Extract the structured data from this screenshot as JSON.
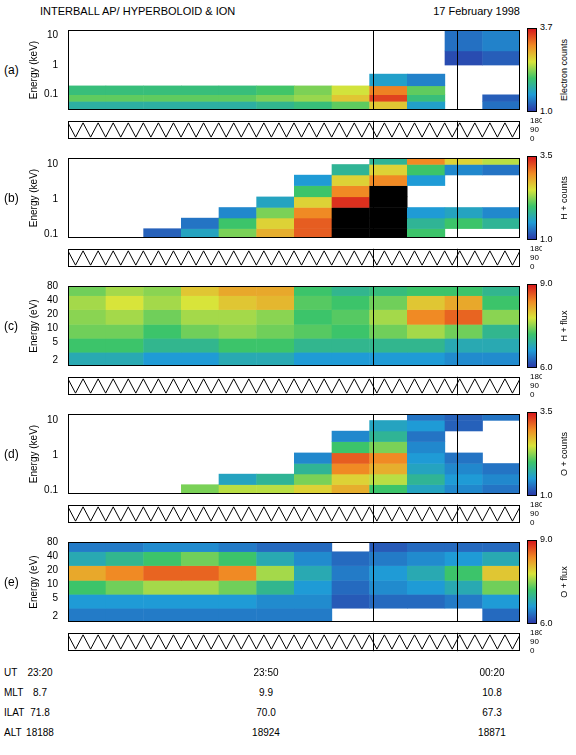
{
  "title": "INTERBALL AP/ HYPERBOLOID & ION",
  "date": "17 February 1998",
  "x_label": "UT",
  "xlim": [
    0,
    60
  ],
  "xticks": [
    {
      "value": 0,
      "label": "23:20"
    },
    {
      "value": 30,
      "label": "23:50"
    },
    {
      "value": 60,
      "label": "00:20"
    }
  ],
  "x_rows": [
    {
      "name": "MLT",
      "labels": [
        "8.7",
        "9.9",
        "10.8"
      ]
    },
    {
      "name": "ILAT",
      "labels": [
        "71.8",
        "70.0",
        "67.3"
      ]
    },
    {
      "name": "ALT",
      "labels": [
        "18188",
        "18924",
        "18871"
      ]
    }
  ],
  "vertical_lines": [
    40.5,
    51.7
  ],
  "x_edges": [
    0,
    5,
    10,
    15,
    20,
    25,
    30,
    35,
    40,
    45,
    50,
    55,
    60
  ],
  "pitch_angle": {
    "ylim": [
      0,
      180
    ],
    "yticks": [
      0,
      90,
      180
    ],
    "x": [
      0,
      1,
      2,
      3,
      4,
      5,
      6,
      7,
      8,
      9,
      10,
      11,
      12,
      13,
      14,
      15,
      16,
      17,
      18,
      19,
      20,
      21,
      22,
      23,
      24,
      25,
      26,
      27,
      28,
      29,
      30,
      31,
      32,
      33,
      34,
      35,
      36,
      37,
      38,
      39,
      40,
      41,
      42,
      43,
      44,
      45,
      46,
      47,
      48,
      49,
      50,
      51,
      52,
      53,
      54,
      55,
      56,
      57,
      58,
      59,
      60
    ],
    "values": [
      160,
      20,
      160,
      20,
      160,
      20,
      160,
      20,
      160,
      20,
      160,
      20,
      160,
      20,
      160,
      20,
      160,
      20,
      160,
      20,
      160,
      20,
      160,
      20,
      160,
      20,
      160,
      20,
      160,
      20,
      160,
      20,
      160,
      20,
      160,
      20,
      160,
      20,
      160,
      20,
      160,
      20,
      160,
      20,
      160,
      20,
      160,
      20,
      160,
      20,
      160,
      20,
      160,
      20,
      160,
      20,
      160,
      20,
      160,
      20,
      160
    ]
  },
  "chart_data": [
    {
      "type": "heatmap",
      "panel": "(a)",
      "y_label": "Energy (keV)",
      "log": "y",
      "ylim": [
        0.03,
        15
      ],
      "yticks": [
        0.1,
        1,
        10
      ],
      "y_edges": [
        0.03,
        0.06,
        0.1,
        0.2,
        0.5,
        1,
        3,
        15
      ],
      "cells": [
        [
          1.8,
          1.8,
          1.8,
          1.8,
          1.8,
          1.9,
          2.0,
          2.2,
          2.8,
          1.6,
          null,
          1.3
        ],
        [
          2.2,
          2.2,
          2.2,
          2.2,
          2.2,
          2.3,
          2.4,
          2.8,
          3.5,
          2.0,
          null,
          1.2
        ],
        [
          2.0,
          2.0,
          2.0,
          2.0,
          2.0,
          2.1,
          2.3,
          2.6,
          3.2,
          2.2,
          null,
          null
        ],
        [
          null,
          null,
          null,
          null,
          null,
          null,
          null,
          null,
          1.6,
          1.4,
          null,
          null
        ],
        [
          null,
          null,
          null,
          null,
          null,
          null,
          null,
          null,
          null,
          null,
          null,
          null
        ],
        [
          null,
          null,
          null,
          null,
          null,
          null,
          null,
          null,
          null,
          null,
          1.1,
          1.2
        ],
        [
          null,
          null,
          null,
          null,
          null,
          null,
          null,
          null,
          null,
          null,
          1.3,
          1.4
        ]
      ],
      "colorbar": {
        "label": "Electron counts",
        "range": [
          1.0,
          3.7
        ],
        "ticks": [
          {
            "value": 1.0,
            "label": "1.0"
          },
          {
            "value": 3.7,
            "label": "3.7"
          }
        ]
      }
    },
    {
      "type": "heatmap",
      "panel": "(b)",
      "y_label": "Energy (keV)",
      "log": "y",
      "ylim": [
        0.08,
        15
      ],
      "yticks": [
        0.1,
        1,
        10
      ],
      "y_edges": [
        0.08,
        0.15,
        0.3,
        0.6,
        1.2,
        2.5,
        5,
        10,
        15
      ],
      "cells": [
        [
          null,
          null,
          1.2,
          1.6,
          2.2,
          2.8,
          3.2,
          3.8,
          3.8,
          2.0,
          null,
          null
        ],
        [
          null,
          null,
          null,
          1.3,
          2.0,
          2.6,
          3.2,
          3.8,
          3.8,
          1.8,
          2.0,
          1.8
        ],
        [
          null,
          null,
          null,
          null,
          1.4,
          2.2,
          3.0,
          3.6,
          3.8,
          1.5,
          1.6,
          1.4
        ],
        [
          null,
          null,
          null,
          null,
          null,
          1.6,
          2.6,
          3.4,
          3.8,
          null,
          null,
          null
        ],
        [
          null,
          null,
          null,
          null,
          null,
          null,
          2.0,
          3.0,
          3.6,
          null,
          null,
          null
        ],
        [
          null,
          null,
          null,
          null,
          null,
          null,
          1.5,
          2.6,
          3.0,
          1.5,
          null,
          null
        ],
        [
          null,
          null,
          null,
          null,
          null,
          null,
          null,
          1.8,
          2.6,
          2.0,
          1.4,
          1.3
        ],
        [
          null,
          null,
          null,
          null,
          null,
          null,
          null,
          null,
          1.8,
          3.0,
          2.6,
          2.4
        ]
      ],
      "colorbar": {
        "label": "H + counts",
        "range": [
          1.0,
          3.5
        ],
        "ticks": [
          {
            "value": 1.0,
            "label": "1.0"
          },
          {
            "value": 3.5,
            "label": "3.5"
          }
        ]
      }
    },
    {
      "type": "heatmap",
      "panel": "(c)",
      "y_label": "Energy (eV)",
      "log": "y",
      "ylim": [
        1.5,
        80
      ],
      "yticks": [
        2,
        5,
        10,
        20,
        40,
        80
      ],
      "y_edges": [
        1.5,
        3,
        6,
        12,
        25,
        50,
        80
      ],
      "cells": [
        [
          6.8,
          6.8,
          6.6,
          6.6,
          6.8,
          6.8,
          6.6,
          6.6,
          6.6,
          6.6,
          6.5,
          6.5
        ],
        [
          7.2,
          7.2,
          7.0,
          7.0,
          7.2,
          7.2,
          7.0,
          7.0,
          7.0,
          7.0,
          6.8,
          6.8
        ],
        [
          7.4,
          7.4,
          7.2,
          7.4,
          7.5,
          7.4,
          7.3,
          7.2,
          7.4,
          7.6,
          7.4,
          7.0
        ],
        [
          7.5,
          7.6,
          7.4,
          7.6,
          7.6,
          7.5,
          7.2,
          7.3,
          7.6,
          8.4,
          8.6,
          7.5
        ],
        [
          7.6,
          7.8,
          7.6,
          7.8,
          8.0,
          8.1,
          7.3,
          7.2,
          7.4,
          8.0,
          8.2,
          7.2
        ],
        [
          7.4,
          7.6,
          7.5,
          8.0,
          8.2,
          8.2,
          7.2,
          7.0,
          7.1,
          7.2,
          7.2,
          7.0
        ]
      ],
      "colorbar": {
        "label": "H + flux",
        "range": [
          6.0,
          9.0
        ],
        "ticks": [
          {
            "value": 6.0,
            "label": "6.0"
          },
          {
            "value": 9.0,
            "label": "9.0"
          }
        ]
      }
    },
    {
      "type": "heatmap",
      "panel": "(d)",
      "y_label": "Energy (keV)",
      "log": "y",
      "ylim": [
        0.08,
        15
      ],
      "yticks": [
        0.1,
        1,
        10
      ],
      "y_edges": [
        0.08,
        0.15,
        0.3,
        0.6,
        1.2,
        2.5,
        5,
        10,
        15
      ],
      "cells": [
        [
          null,
          null,
          null,
          2.2,
          2.4,
          2.4,
          2.6,
          2.8,
          2.0,
          1.6,
          1.4,
          1.3
        ],
        [
          null,
          null,
          null,
          null,
          1.6,
          1.8,
          2.2,
          2.6,
          2.4,
          1.8,
          1.5,
          1.4
        ],
        [
          null,
          null,
          null,
          null,
          null,
          null,
          1.8,
          3.0,
          2.8,
          1.6,
          1.4,
          1.3
        ],
        [
          null,
          null,
          null,
          null,
          null,
          null,
          1.4,
          3.2,
          3.0,
          1.5,
          1.3,
          null
        ],
        [
          null,
          null,
          null,
          null,
          null,
          null,
          null,
          2.0,
          2.2,
          1.4,
          null,
          null
        ],
        [
          null,
          null,
          null,
          null,
          null,
          null,
          null,
          1.4,
          1.8,
          1.3,
          null,
          null
        ],
        [
          null,
          null,
          null,
          null,
          null,
          null,
          null,
          null,
          1.6,
          1.5,
          1.2,
          null
        ],
        [
          null,
          null,
          null,
          null,
          null,
          null,
          null,
          null,
          null,
          1.3,
          1.2,
          1.3
        ]
      ],
      "colorbar": {
        "label": "O + counts",
        "range": [
          1.0,
          3.5
        ],
        "ticks": [
          {
            "value": 1.0,
            "label": "1.0"
          },
          {
            "value": 3.5,
            "label": "3.5"
          }
        ]
      }
    },
    {
      "type": "heatmap",
      "panel": "(e)",
      "y_label": "Energy (eV)",
      "log": "y",
      "ylim": [
        1.5,
        80
      ],
      "yticks": [
        2,
        5,
        10,
        20,
        40,
        80
      ],
      "y_edges": [
        1.5,
        3,
        6,
        12,
        25,
        50,
        80
      ],
      "cells": [
        [
          6.4,
          6.4,
          6.4,
          6.4,
          6.4,
          6.4,
          6.4,
          null,
          null,
          null,
          null,
          6.3
        ],
        [
          6.6,
          6.6,
          6.6,
          6.6,
          6.6,
          6.5,
          6.5,
          6.2,
          6.3,
          6.3,
          6.4,
          6.6
        ],
        [
          7.2,
          7.4,
          7.6,
          7.6,
          7.4,
          7.0,
          6.6,
          6.3,
          6.5,
          6.6,
          6.8,
          7.4
        ],
        [
          8.2,
          8.4,
          8.6,
          8.6,
          8.4,
          7.6,
          6.8,
          6.4,
          6.6,
          6.8,
          7.2,
          8.0
        ],
        [
          6.8,
          7.0,
          7.2,
          7.4,
          7.2,
          6.8,
          6.5,
          6.3,
          6.4,
          6.5,
          6.6,
          6.8
        ],
        [
          6.4,
          6.4,
          6.5,
          6.5,
          6.4,
          6.3,
          6.3,
          null,
          6.2,
          6.3,
          6.3,
          6.3
        ]
      ],
      "colorbar": {
        "label": "O + flux",
        "range": [
          6.0,
          9.0
        ],
        "ticks": [
          {
            "value": 6.0,
            "label": "6.0"
          },
          {
            "value": 9.0,
            "label": "9.0"
          }
        ]
      }
    }
  ]
}
